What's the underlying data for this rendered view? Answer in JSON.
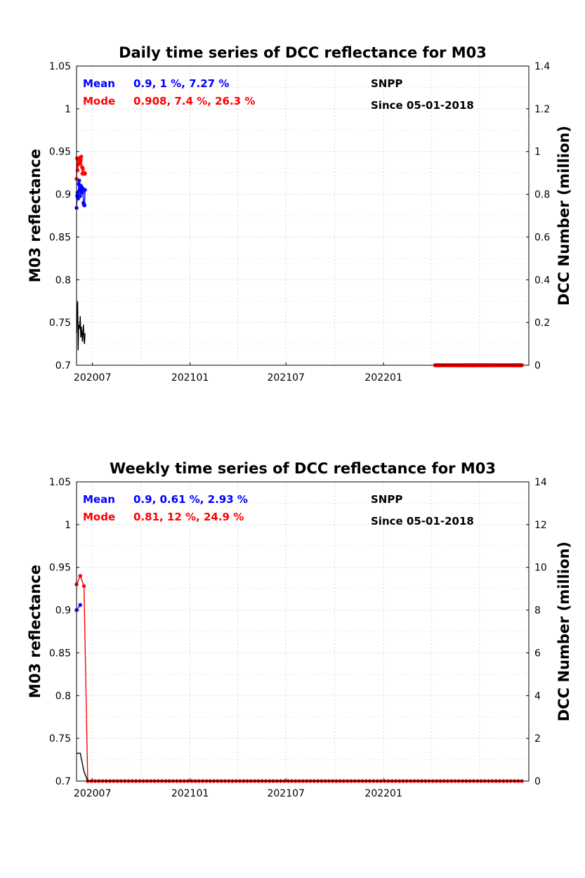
{
  "chart_data": [
    {
      "type": "line",
      "title": "Daily time series of DCC reflectance for M03",
      "ylabel": "M03 reflectance",
      "y2label": "DCC Number (million)",
      "x_tick_labels": [
        "202007",
        "202101",
        "202107",
        "202201"
      ],
      "y_tick_labels": [
        "0.7",
        "0.75",
        "0.8",
        "0.85",
        "0.9",
        "0.95",
        "1",
        "1.05"
      ],
      "y2_tick_labels": [
        "0",
        "0.2",
        "0.4",
        "0.6",
        "0.8",
        "1",
        "1.2",
        "1.4"
      ],
      "ylim": [
        0.7,
        1.05
      ],
      "y2lim": [
        0,
        1.4
      ],
      "grid": true,
      "annotations": {
        "mean_label": "Mean",
        "mean_value": "0.9, 1 %, 7.27 %",
        "mode_label": "Mode",
        "mode_value": "0.908, 7.4 %, 26.3 %",
        "satellite": "SNPP",
        "since": "Since 05-01-2018"
      },
      "series": [
        {
          "name": "Mean",
          "color": "#0000ff",
          "axis": "left",
          "marker": "*",
          "x": [
            "2020-06-01",
            "2020-06-02",
            "2020-06-03",
            "2020-06-04",
            "2020-06-05",
            "2020-06-06",
            "2020-06-07",
            "2020-06-08",
            "2020-06-09",
            "2020-06-10",
            "2020-06-11",
            "2020-06-12",
            "2020-06-13",
            "2020-06-14",
            "2020-06-15",
            "2020-06-16",
            "2020-06-17"
          ],
          "values": [
            0.884,
            0.898,
            0.902,
            0.895,
            0.912,
            0.916,
            0.905,
            0.898,
            0.91,
            0.904,
            0.908,
            0.902,
            0.906,
            0.89,
            0.888,
            0.887,
            0.905
          ]
        },
        {
          "name": "Mode",
          "color": "#ff0000",
          "axis": "left",
          "marker": "*",
          "x": [
            "2020-06-01",
            "2020-06-02",
            "2020-06-03",
            "2020-06-04",
            "2020-06-05",
            "2020-06-06",
            "2020-06-07",
            "2020-06-08",
            "2020-06-09",
            "2020-06-10",
            "2020-06-11",
            "2020-06-12",
            "2020-06-13",
            "2020-06-14",
            "2020-06-15",
            "2020-06-16",
            "2020-06-17"
          ],
          "values": [
            0.918,
            0.942,
            0.928,
            0.935,
            0.941,
            0.942,
            0.936,
            0.943,
            0.94,
            0.944,
            0.932,
            0.924,
            0.93,
            0.925,
            0.924,
            0.925,
            0.924
          ]
        },
        {
          "name": "DCC Number",
          "color": "#000000",
          "axis": "right",
          "x": [
            "2020-06-01",
            "2020-06-02",
            "2020-06-03",
            "2020-06-04",
            "2020-06-05",
            "2020-06-06",
            "2020-06-07",
            "2020-06-08",
            "2020-06-09",
            "2020-06-10",
            "2020-06-11",
            "2020-06-12",
            "2020-06-13",
            "2020-06-14",
            "2020-06-15",
            "2020-06-16",
            "2020-06-17"
          ],
          "values": [
            0.15,
            0.24,
            0.3,
            0.07,
            0.19,
            0.17,
            0.18,
            0.23,
            0.13,
            0.18,
            0.15,
            0.11,
            0.16,
            0.19,
            0.12,
            0.1,
            0.15
          ]
        },
        {
          "name": "Mode",
          "color": "#ff0000",
          "axis": "left",
          "marker": "*",
          "x_start": "2022-04-08",
          "x_end": "2022-09-20",
          "constant_value": 0.7,
          "note_series": "flat"
        }
      ]
    },
    {
      "type": "line",
      "title": "Weekly time series of DCC reflectance for M03",
      "ylabel": "M03 reflectance",
      "y2label": "DCC Number (million)",
      "x_tick_labels": [
        "202007",
        "202101",
        "202107",
        "202201"
      ],
      "y_tick_labels": [
        "0.7",
        "0.75",
        "0.8",
        "0.85",
        "0.9",
        "0.95",
        "1",
        "1.05"
      ],
      "y2_tick_labels": [
        "0",
        "2",
        "4",
        "6",
        "8",
        "10",
        "12",
        "14"
      ],
      "ylim": [
        0.7,
        1.05
      ],
      "y2lim": [
        0,
        14
      ],
      "grid": true,
      "annotations": {
        "mean_label": "Mean",
        "mean_value": "0.9, 0.61 %, 2.93 %",
        "mode_label": "Mode",
        "mode_value": "0.81, 12 %, 24.9 %",
        "satellite": "SNPP",
        "since": "Since 05-01-2018"
      },
      "series": [
        {
          "name": "Mean",
          "color": "#0000ff",
          "axis": "left",
          "marker": "*",
          "x": [
            "2020-06-01",
            "2020-06-08"
          ],
          "values": [
            0.9,
            0.906
          ]
        },
        {
          "name": "Mode",
          "color": "#ff0000",
          "axis": "left",
          "marker": "*",
          "x": [
            "2020-06-01",
            "2020-06-08",
            "2020-06-15",
            "2020-06-22"
          ],
          "values": [
            0.93,
            0.94,
            0.928,
            0.7
          ],
          "then_constant": 0.7,
          "x_end": "2022-09-20",
          "weekly": true
        },
        {
          "name": "DCC Number",
          "color": "#000000",
          "axis": "right",
          "x": [
            "2020-06-01",
            "2020-06-08",
            "2020-06-15",
            "2020-06-22",
            "2020-06-29"
          ],
          "values": [
            1.3,
            1.3,
            0.45,
            0.0,
            0.0
          ],
          "then_constant": 0,
          "x_end": "2022-09-20"
        }
      ]
    }
  ]
}
